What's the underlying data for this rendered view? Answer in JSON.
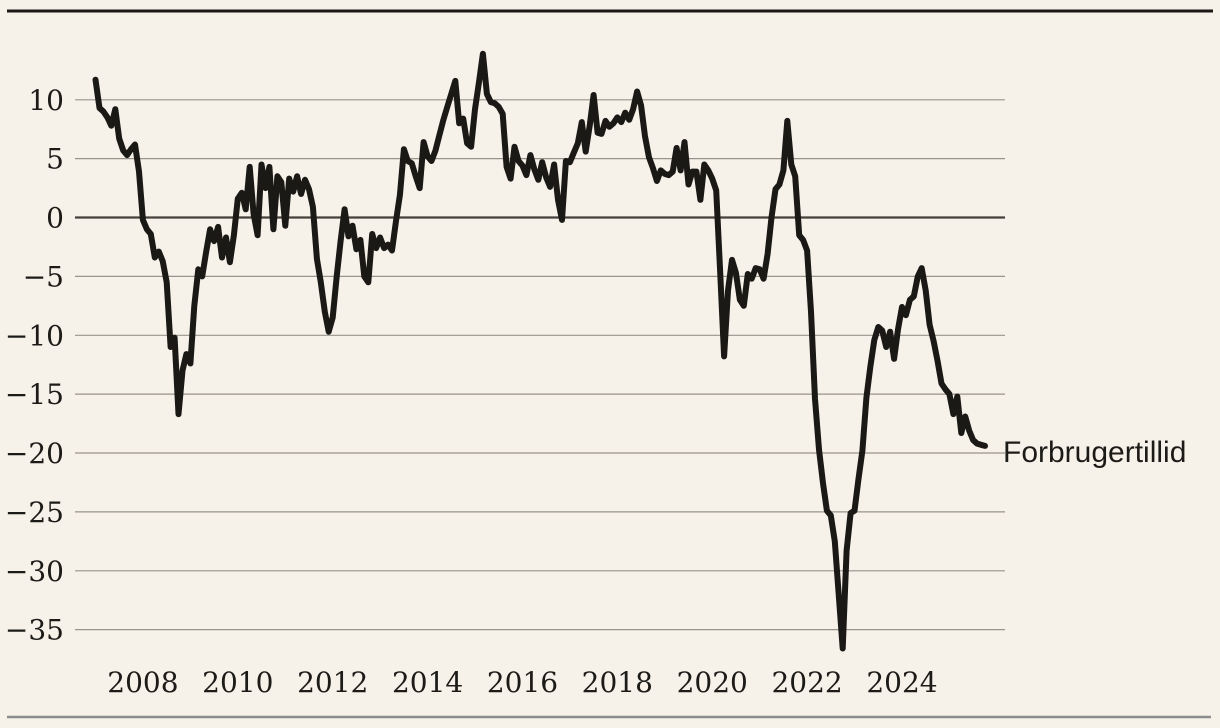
{
  "page": {
    "background_color": "#f6f1e9",
    "top_rule_color": "#1b1916",
    "bottom_rule_color": "#8c8c8c"
  },
  "chart_data": {
    "type": "line",
    "title": "",
    "series_label": "Forbrugertillid",
    "line_color": "#1b1916",
    "grid_color": "#99948b",
    "zero_line_color": "#45413b",
    "frequency": "monthly",
    "x_start": {
      "year": 2007,
      "month": 1
    },
    "x_end": {
      "year": 2025,
      "month": 10
    },
    "x_ticks": [
      2008,
      2010,
      2012,
      2014,
      2016,
      2018,
      2020,
      2022,
      2024
    ],
    "x_tick_labels": [
      "2008",
      "2010",
      "2012",
      "2014",
      "2016",
      "2018",
      "2020",
      "2022",
      "2024"
    ],
    "y_ticks": [
      10,
      5,
      0,
      -5,
      -10,
      -15,
      -20,
      -25,
      -30,
      -35
    ],
    "y_tick_labels": [
      "10",
      "5",
      "0",
      "−5",
      "−10",
      "−15",
      "−20",
      "−25",
      "−30",
      "−35"
    ],
    "ylim": [
      -38.5,
      14.5
    ],
    "grid": true,
    "legend_position": "end-of-line annotation, right side",
    "values": [
      11.7,
      9.3,
      9.0,
      8.5,
      7.8,
      9.2,
      6.7,
      5.7,
      5.3,
      5.8,
      6.2,
      3.9,
      -0.2,
      -1.0,
      -1.4,
      -3.4,
      -2.9,
      -3.7,
      -5.5,
      -11.0,
      -10.2,
      -16.7,
      -13.0,
      -11.6,
      -12.4,
      -7.5,
      -4.4,
      -5.0,
      -2.9,
      -1.0,
      -2.0,
      -0.8,
      -3.4,
      -1.7,
      -3.8,
      -1.5,
      1.6,
      2.1,
      0.7,
      4.3,
      0.3,
      -1.5,
      4.5,
      2.5,
      4.3,
      -1.0,
      3.5,
      3.0,
      -0.7,
      3.3,
      2.2,
      3.5,
      2.0,
      3.2,
      2.4,
      0.9,
      -3.5,
      -5.5,
      -8.0,
      -9.7,
      -8.5,
      -5.0,
      -2.0,
      0.7,
      -1.6,
      -0.7,
      -2.7,
      -1.9,
      -5.0,
      -5.5,
      -1.4,
      -2.6,
      -1.7,
      -2.6,
      -2.3,
      -2.8,
      -0.3,
      1.9,
      5.8,
      4.8,
      4.6,
      3.5,
      2.5,
      6.4,
      5.2,
      4.8,
      5.7,
      7.0,
      8.3,
      9.4,
      10.5,
      11.6,
      8.0,
      8.4,
      6.3,
      6.0,
      9.2,
      11.5,
      13.9,
      10.5,
      9.8,
      9.7,
      9.4,
      8.8,
      4.3,
      3.3,
      6.0,
      4.8,
      4.4,
      3.6,
      5.3,
      4.1,
      3.2,
      4.7,
      3.4,
      2.6,
      4.5,
      1.5,
      -0.2,
      4.8,
      4.7,
      5.5,
      6.3,
      8.1,
      5.6,
      7.8,
      10.4,
      7.2,
      7.1,
      8.2,
      7.7,
      8.0,
      8.5,
      8.1,
      8.9,
      8.3,
      9.2,
      10.7,
      9.5,
      6.9,
      5.1,
      4.2,
      3.1,
      4.0,
      3.7,
      3.6,
      3.9,
      5.9,
      4.0,
      6.4,
      2.8,
      3.9,
      3.9,
      1.5,
      4.5,
      4.0,
      3.3,
      2.3,
      -4.5,
      -11.8,
      -6.2,
      -3.6,
      -4.7,
      -7.0,
      -7.5,
      -4.8,
      -5.2,
      -4.3,
      -4.4,
      -5.2,
      -3.1,
      0.0,
      2.4,
      2.8,
      4.0,
      8.2,
      4.5,
      3.5,
      -1.5,
      -1.9,
      -2.8,
      -8.0,
      -15.4,
      -19.7,
      -22.5,
      -24.9,
      -25.3,
      -27.5,
      -32.0,
      -36.6,
      -28.3,
      -25.1,
      -24.9,
      -22.2,
      -19.8,
      -15.3,
      -12.7,
      -10.4,
      -9.3,
      -9.6,
      -11.0,
      -9.7,
      -12.0,
      -9.5,
      -7.6,
      -8.3,
      -7.0,
      -6.7,
      -5.0,
      -4.3,
      -6.2,
      -9.1,
      -10.5,
      -12.2,
      -14.1,
      -14.6,
      -15.0,
      -16.7,
      -15.2,
      -18.3,
      -16.9,
      -18.1,
      -18.9,
      -19.2,
      -19.3,
      -19.4
    ]
  }
}
